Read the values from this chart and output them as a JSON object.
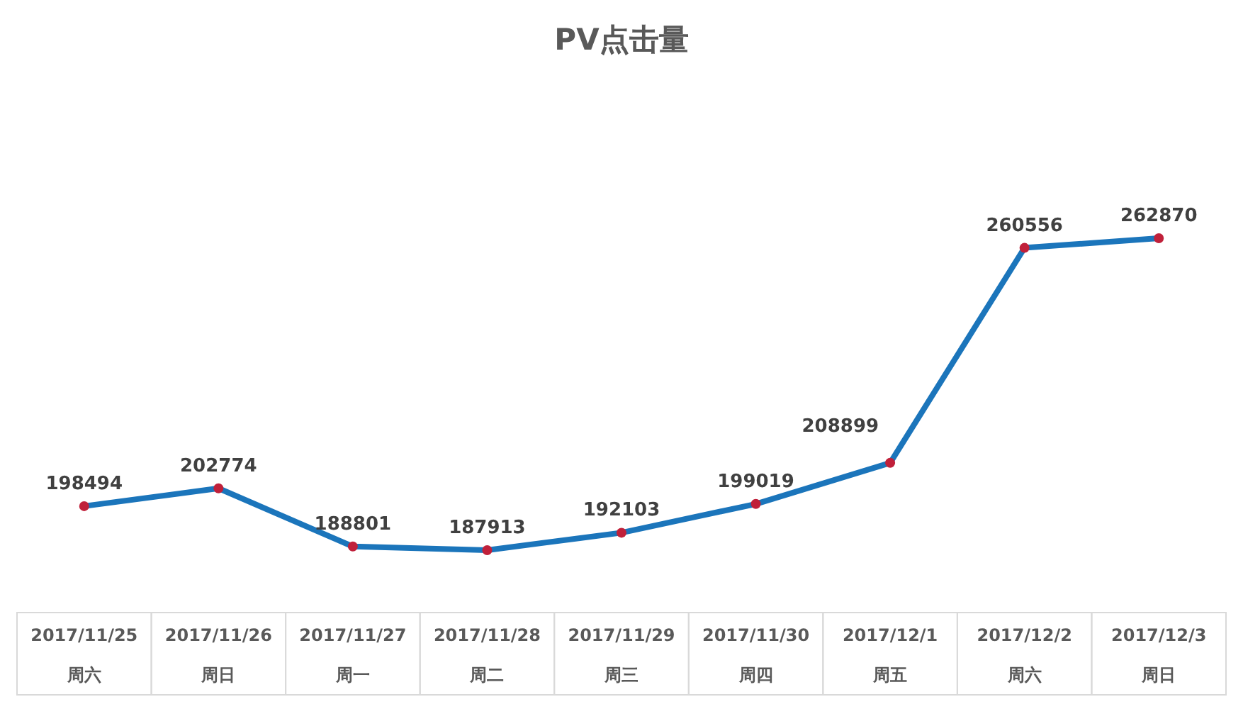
{
  "chart_data": {
    "type": "line",
    "title": "PV点击量",
    "categories": [
      "2017/11/25\n周六",
      "2017/11/26\n周日",
      "2017/11/27\n周一",
      "2017/11/28\n周二",
      "2017/11/29\n周三",
      "2017/11/30\n周四",
      "2017/12/1\n周五",
      "2017/12/2\n周六",
      "2017/12/3\n周日"
    ],
    "series": [
      {
        "color": "#1b75bb",
        "colors": [
          "#c0203a",
          "#c0203a",
          "#c0203a",
          "#c0203a",
          "#c0203a",
          "#c0203a",
          "#c0203a",
          "#c0203a",
          "#c0203a"
        ],
        "values": [
          198494,
          202774,
          188801,
          187913,
          192103,
          199019,
          208899,
          260556,
          262870
        ]
      }
    ],
    "data_labels": true,
    "marker": "circle",
    "grid": false,
    "legend": false
  }
}
